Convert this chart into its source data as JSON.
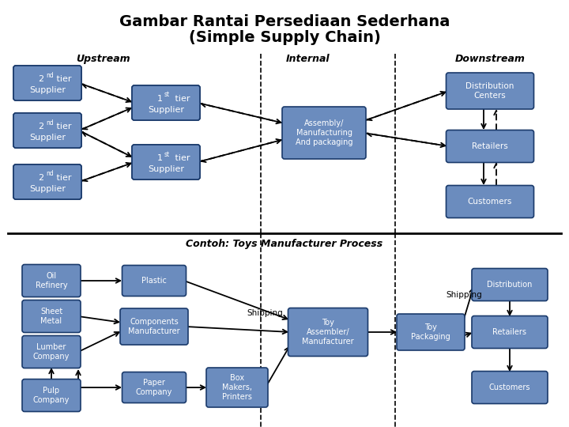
{
  "title_line1": "Gambar Rantai Persediaan Sederhana",
  "title_line2": "(Simple Supply Chain)",
  "bg_color": "#ffffff",
  "box_fc": "#6b8cbe",
  "box_ec": "#1a3a6b",
  "text_color": "white",
  "subtitle_bottom": "Contoh: Toys Manufacturer Process"
}
